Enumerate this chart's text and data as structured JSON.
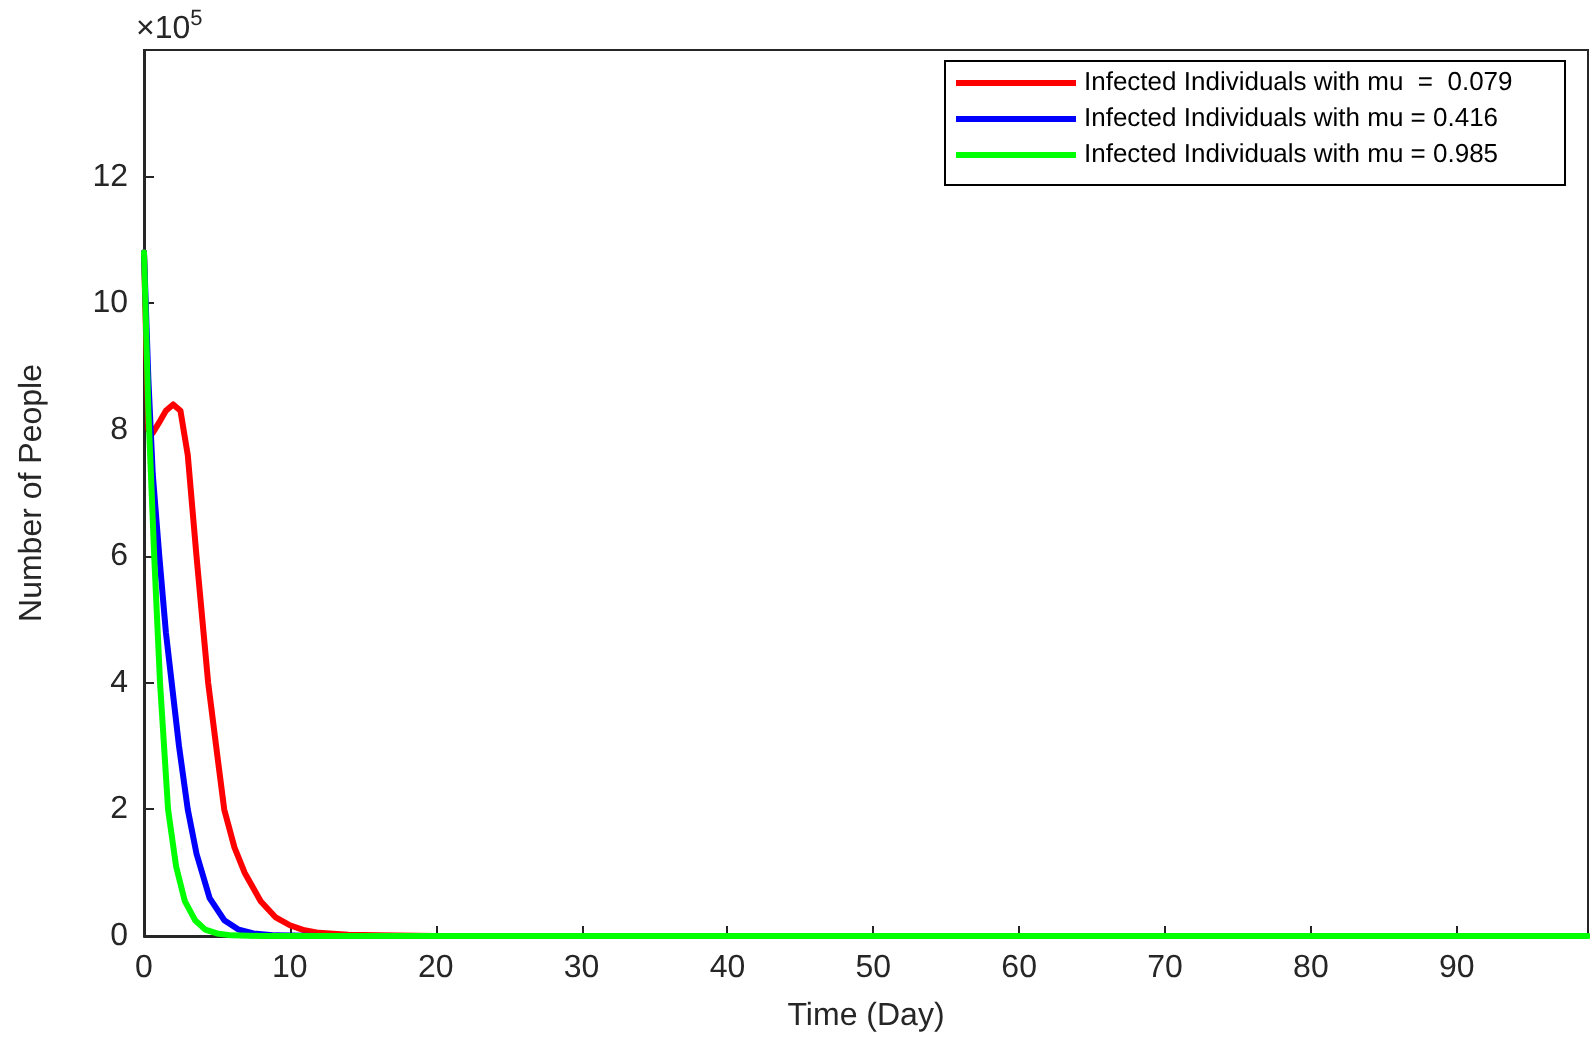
{
  "chart_data": {
    "type": "line",
    "xlabel": "Time (Day)",
    "ylabel": "Number of People",
    "annotations": [
      "×10$^{5}$"
    ],
    "xlim": [
      0,
      99
    ],
    "xticks": [
      0,
      10,
      20,
      30,
      40,
      50,
      60,
      70,
      80,
      90
    ],
    "ylim": [
      0,
      14
    ],
    "yticks": [
      0,
      2,
      4,
      6,
      8,
      10,
      12
    ],
    "grid": false,
    "legend": "top right",
    "line_style": "solid",
    "marker": "none",
    "series": [
      {
        "name": "Infected Individuals with mu  =  0.079",
        "color": "#ff0000",
        "x": [
          0,
          0.3,
          0.6,
          1,
          1.5,
          2,
          2.5,
          3,
          3.6,
          4.4,
          5,
          5.5,
          6.2,
          6.9,
          8,
          9,
          10,
          11,
          12,
          14,
          16,
          20,
          30
        ],
        "values": [
          10.8,
          8.0,
          7.95,
          8.1,
          8.3,
          8.4,
          8.3,
          7.6,
          6,
          4,
          2.9,
          2,
          1.4,
          1,
          0.55,
          0.3,
          0.17,
          0.09,
          0.05,
          0.02,
          0.01,
          0,
          0
        ]
      },
      {
        "name": "Infected Individuals with mu = 0.416",
        "color": "#0000ff",
        "x": [
          0,
          0.3,
          0.6,
          1.05,
          1.5,
          1.9,
          2.4,
          3,
          3.6,
          4.5,
          5.5,
          6.5,
          7.5,
          9,
          12,
          20
        ],
        "values": [
          10.8,
          8.8,
          7.3,
          6,
          4.8,
          4,
          3,
          2,
          1.3,
          0.6,
          0.25,
          0.1,
          0.04,
          0.01,
          0,
          0
        ]
      },
      {
        "name": "Infected Individuals with mu = 0.985",
        "color": "#00ff00",
        "x": [
          0,
          0.3,
          0.7,
          1.1,
          1.65,
          2.2,
          2.8,
          3.5,
          4.2,
          5,
          6,
          8,
          20,
          50,
          99
        ],
        "values": [
          10.8,
          8.3,
          6,
          4,
          2,
          1.1,
          0.55,
          0.25,
          0.1,
          0.04,
          0.01,
          0,
          0,
          0,
          0
        ]
      }
    ]
  }
}
